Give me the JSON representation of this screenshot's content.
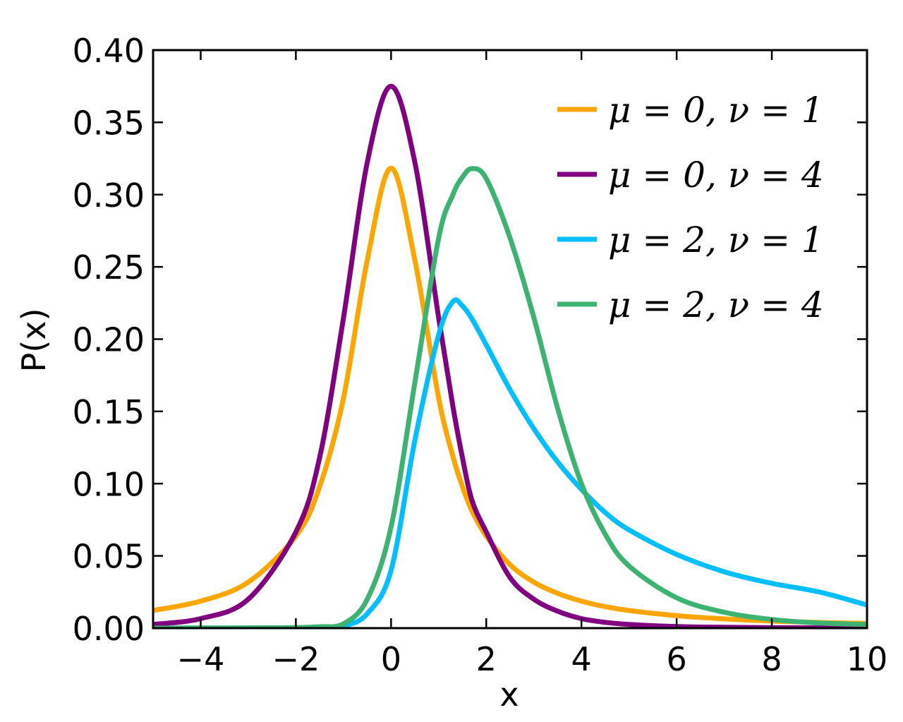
{
  "chart_data": {
    "type": "line",
    "xlabel": "x",
    "ylabel": "P(x)",
    "xlim": [
      -5,
      10
    ],
    "ylim": [
      0,
      0.4
    ],
    "x_ticks": [
      -4,
      -2,
      0,
      2,
      4,
      6,
      8,
      10
    ],
    "x_tick_labels": [
      "−4",
      "−2",
      "0",
      "2",
      "4",
      "6",
      "8",
      "10"
    ],
    "y_ticks": [
      0,
      0.05,
      0.1,
      0.15,
      0.2,
      0.25,
      0.3,
      0.35,
      0.4
    ],
    "y_tick_labels": [
      "0.00",
      "0.05",
      "0.10",
      "0.15",
      "0.20",
      "0.25",
      "0.30",
      "0.35",
      "0.40"
    ],
    "grid": false,
    "legend_position": "top-right",
    "x": [
      -5,
      -4,
      -3,
      -2,
      -1.5,
      -1,
      -0.5,
      0,
      0.5,
      1,
      1.3,
      1.5,
      1.7,
      2,
      2.5,
      3,
      3.5,
      4,
      4.5,
      5,
      6,
      7,
      8,
      9,
      10
    ],
    "series": [
      {
        "name": "μ = 0,  ν = 1",
        "color": "#FFA500",
        "values": [
          0.0122,
          0.0187,
          0.0318,
          0.0637,
          0.0979,
          0.1592,
          0.2546,
          0.3183,
          0.2546,
          0.1592,
          0.1189,
          0.0979,
          0.0812,
          0.0637,
          0.0439,
          0.0318,
          0.0241,
          0.0187,
          0.0149,
          0.0122,
          0.0086,
          0.0064,
          0.0049,
          0.0039,
          0.0032
        ]
      },
      {
        "name": "μ = 0,  ν = 4",
        "color": "#800080",
        "values": [
          0.0026,
          0.0066,
          0.02,
          0.0665,
          0.118,
          0.2147,
          0.3223,
          0.375,
          0.3223,
          0.2147,
          0.1534,
          0.118,
          0.0885,
          0.0665,
          0.035,
          0.02,
          0.0117,
          0.0066,
          0.004,
          0.0026,
          0.0011,
          0.0006,
          0.0003,
          0.0002,
          0.0001
        ]
      },
      {
        "name": "μ = 2,  ν = 1",
        "color": "#00BFFF",
        "values": [
          0.0,
          0.0001,
          0.0001,
          0.0003,
          0.0006,
          0.0015,
          0.01,
          0.04,
          0.13,
          0.203,
          0.226,
          0.223,
          0.214,
          0.196,
          0.165,
          0.138,
          0.115,
          0.096,
          0.08,
          0.068,
          0.051,
          0.039,
          0.031,
          0.025,
          0.016
        ]
      },
      {
        "name": "μ = 2,  ν = 4",
        "color": "#3CB371",
        "values": [
          0.0,
          0.0001,
          0.0002,
          0.0004,
          0.001,
          0.003,
          0.02,
          0.07,
          0.17,
          0.27,
          0.3,
          0.312,
          0.318,
          0.311,
          0.27,
          0.215,
          0.152,
          0.1,
          0.065,
          0.043,
          0.021,
          0.011,
          0.006,
          0.0035,
          0.0025
        ]
      }
    ]
  }
}
